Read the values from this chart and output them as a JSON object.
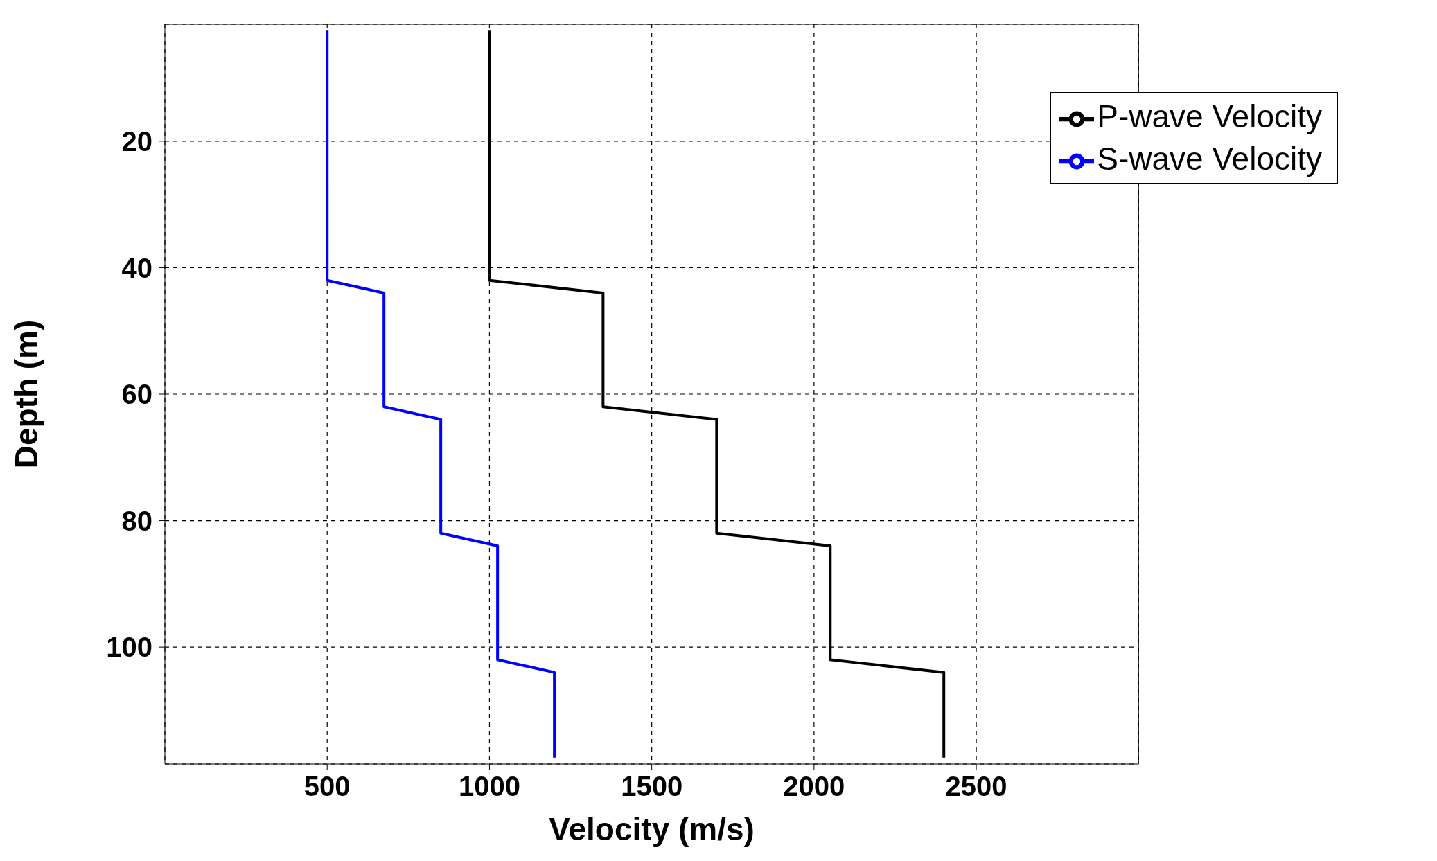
{
  "chart_data": {
    "type": "line",
    "xlabel": "Velocity (m/s)",
    "ylabel": "Depth (m)",
    "xlim": [
      0,
      3000
    ],
    "xticks": [
      500,
      1000,
      1500,
      2000,
      2500
    ],
    "ylim": [
      118.5,
      1.5
    ],
    "yticks": [
      20,
      40,
      60,
      80,
      100
    ],
    "grid": true,
    "legend": "top right",
    "marker": "none",
    "line_style": "solid",
    "series": [
      {
        "name": "P-wave Velocity",
        "color": "#000000",
        "x": [
          1000,
          1000,
          1350,
          1350,
          1700,
          1700,
          2050,
          2050,
          2400,
          2400
        ],
        "values": [
          2.5,
          42,
          44,
          62,
          64,
          82,
          84,
          102,
          104,
          117.5
        ]
      },
      {
        "name": "S-wave Velocity",
        "color": "#0000ff",
        "x": [
          500,
          500,
          675,
          675,
          850,
          850,
          1025,
          1025,
          1200,
          1200
        ],
        "values": [
          2.5,
          42,
          44,
          62,
          64,
          82,
          84,
          102,
          104,
          117.5
        ]
      }
    ]
  }
}
